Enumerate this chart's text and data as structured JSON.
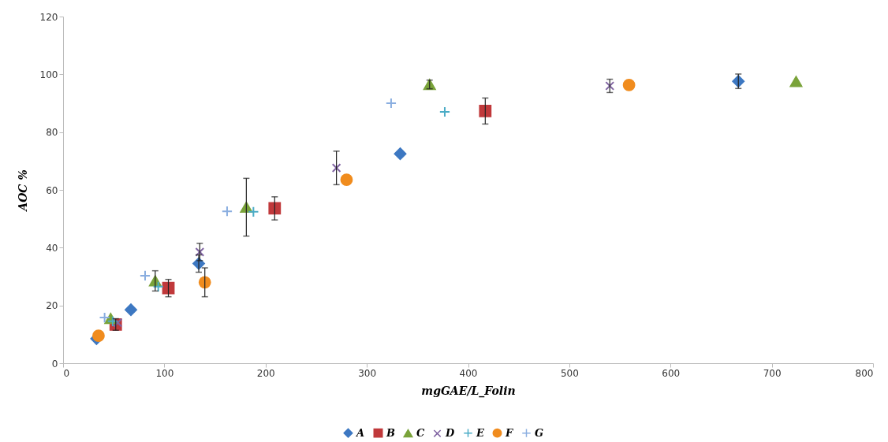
{
  "chart_data": {
    "type": "scatter",
    "xlabel": "mgGAE/L_Folin",
    "ylabel": "AOC %",
    "xlim": [
      0,
      800
    ],
    "xticks": [
      0,
      100,
      200,
      300,
      400,
      500,
      600,
      700,
      800
    ],
    "ylim": [
      0,
      120
    ],
    "yticks": [
      0,
      20,
      40,
      60,
      80,
      100,
      120
    ],
    "grid": false,
    "legend": "bottom",
    "series": [
      {
        "name": "A",
        "color": "#3d78c2",
        "marker": "diamond",
        "x": [
          33,
          67,
          134,
          333,
          667
        ],
        "values": [
          8.5,
          18.5,
          34.5,
          72.5,
          97.6
        ],
        "errors": [
          null,
          null,
          3,
          null,
          2.5
        ]
      },
      {
        "name": "B",
        "color": "#c0393b",
        "marker": "square",
        "x": [
          52,
          104,
          209,
          417
        ],
        "values": [
          13.4,
          26,
          53.6,
          87.3
        ],
        "errors": [
          2,
          3,
          4,
          4.5
        ]
      },
      {
        "name": "C",
        "color": "#7aa33a",
        "marker": "triangle",
        "x": [
          47,
          91,
          181,
          362,
          724
        ],
        "values": [
          15.5,
          28.5,
          54,
          96.5,
          97.5
        ],
        "errors": [
          null,
          3.5,
          10,
          1.5,
          null
        ]
      },
      {
        "name": "D",
        "color": "#8064a2",
        "marker": "x",
        "x": [
          54,
          135,
          270,
          540
        ],
        "values": [
          14,
          38.5,
          67.6,
          96
        ],
        "errors": [
          null,
          3,
          5.8,
          2.3
        ]
      },
      {
        "name": "E",
        "color": "#4bacc6",
        "marker": "cross",
        "x": [
          49,
          94,
          188,
          377
        ],
        "values": [
          14.5,
          26.5,
          52.4,
          87
        ],
        "errors": [
          null,
          null,
          null,
          null
        ]
      },
      {
        "name": "F",
        "color": "#f08c1e",
        "marker": "circle",
        "x": [
          35,
          140,
          280,
          559
        ],
        "values": [
          9.5,
          28,
          63.5,
          96.3
        ],
        "errors": [
          null,
          5,
          null,
          null
        ]
      },
      {
        "name": "G",
        "color": "#8aaee0",
        "marker": "cross",
        "x": [
          41,
          81,
          162,
          324
        ],
        "values": [
          15.8,
          30.3,
          52.6,
          90
        ],
        "errors": [
          null,
          null,
          null,
          null
        ]
      }
    ]
  }
}
